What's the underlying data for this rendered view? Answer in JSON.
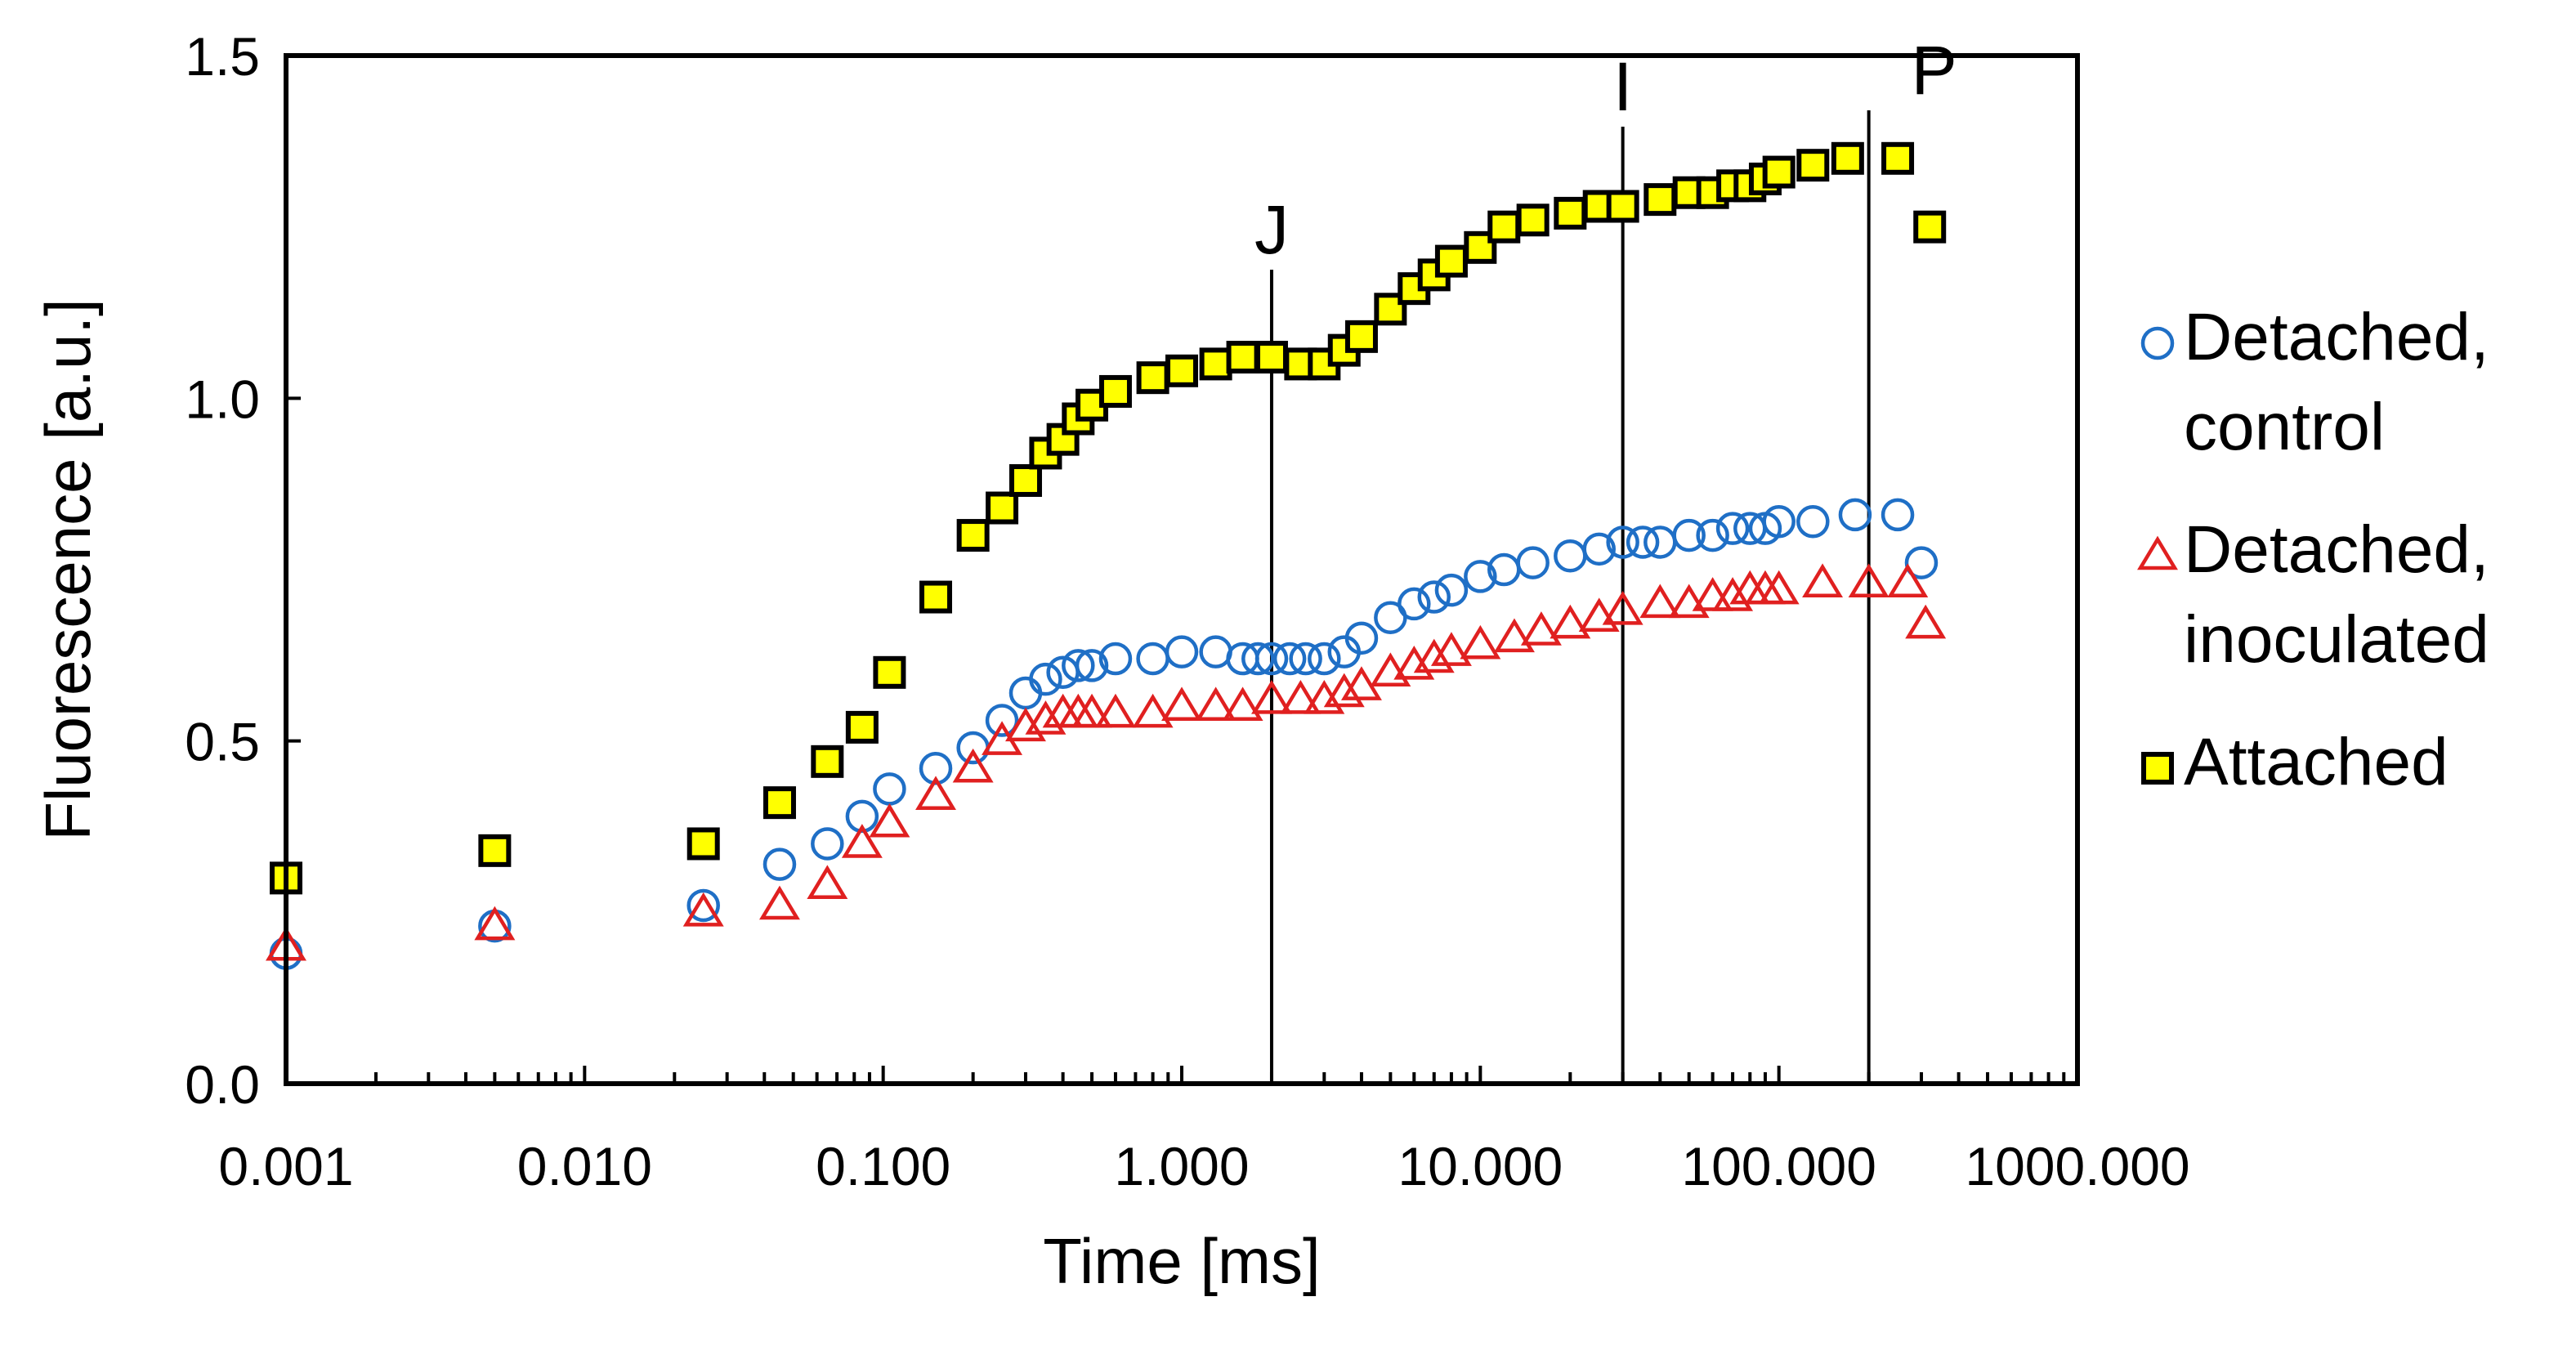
{
  "chart_data": {
    "type": "scatter",
    "x_scale": "log",
    "xlabel": "Time [ms]",
    "ylabel": "Fluorescence [a.u.]",
    "xlim": [
      0.001,
      1000
    ],
    "ylim": [
      0.0,
      1.5
    ],
    "x_tick_labels": [
      "0.001",
      "0.010",
      "0.100",
      "1.000",
      "10.000",
      "100.000",
      "1000.000"
    ],
    "y_tick_labels": [
      "0.0",
      "0.5",
      "1.0",
      "1.5"
    ],
    "x_tick_values": [
      0.001,
      0.01,
      0.1,
      1,
      10,
      100,
      1000
    ],
    "y_tick_values": [
      0.0,
      0.5,
      1.0,
      1.5
    ],
    "grid": false,
    "legend_position": "right",
    "phase_markers": [
      {
        "label": "J",
        "x": 2
      },
      {
        "label": "I",
        "x": 30
      },
      {
        "label": "P",
        "x": 200
      }
    ],
    "series": [
      {
        "name": "Detached, control",
        "legend_lines": [
          "Detached,",
          "control"
        ],
        "marker": "circle",
        "color": "#1f6fc6",
        "points": [
          [
            0.001,
            0.19
          ],
          [
            0.005,
            0.23
          ],
          [
            0.025,
            0.26
          ],
          [
            0.045,
            0.32
          ],
          [
            0.065,
            0.35
          ],
          [
            0.085,
            0.39
          ],
          [
            0.105,
            0.43
          ],
          [
            0.15,
            0.46
          ],
          [
            0.2,
            0.49
          ],
          [
            0.25,
            0.53
          ],
          [
            0.3,
            0.57
          ],
          [
            0.35,
            0.59
          ],
          [
            0.4,
            0.6
          ],
          [
            0.45,
            0.61
          ],
          [
            0.5,
            0.61
          ],
          [
            0.6,
            0.62
          ],
          [
            0.8,
            0.62
          ],
          [
            1.0,
            0.63
          ],
          [
            1.3,
            0.63
          ],
          [
            1.6,
            0.62
          ],
          [
            1.8,
            0.62
          ],
          [
            2.0,
            0.62
          ],
          [
            2.3,
            0.62
          ],
          [
            2.6,
            0.62
          ],
          [
            3.0,
            0.62
          ],
          [
            3.5,
            0.63
          ],
          [
            4.0,
            0.65
          ],
          [
            5.0,
            0.68
          ],
          [
            6.0,
            0.7
          ],
          [
            7.0,
            0.71
          ],
          [
            8.0,
            0.72
          ],
          [
            10.0,
            0.74
          ],
          [
            12.0,
            0.75
          ],
          [
            15.0,
            0.76
          ],
          [
            20.0,
            0.77
          ],
          [
            25.0,
            0.78
          ],
          [
            30.0,
            0.79
          ],
          [
            35.0,
            0.79
          ],
          [
            40.0,
            0.79
          ],
          [
            50.0,
            0.8
          ],
          [
            60.0,
            0.8
          ],
          [
            70.0,
            0.81
          ],
          [
            80.0,
            0.81
          ],
          [
            90.0,
            0.81
          ],
          [
            100.0,
            0.82
          ],
          [
            130.0,
            0.82
          ],
          [
            180.0,
            0.83
          ],
          [
            250.0,
            0.83
          ],
          [
            300.0,
            0.76
          ]
        ]
      },
      {
        "name": "Detached, inoculated",
        "legend_lines": [
          "Detached,",
          "inoculated"
        ],
        "marker": "triangle",
        "color": "#e02020",
        "points": [
          [
            0.001,
            0.2
          ],
          [
            0.005,
            0.23
          ],
          [
            0.025,
            0.25
          ],
          [
            0.045,
            0.26
          ],
          [
            0.065,
            0.29
          ],
          [
            0.085,
            0.35
          ],
          [
            0.105,
            0.38
          ],
          [
            0.15,
            0.42
          ],
          [
            0.2,
            0.46
          ],
          [
            0.25,
            0.5
          ],
          [
            0.3,
            0.52
          ],
          [
            0.35,
            0.53
          ],
          [
            0.4,
            0.54
          ],
          [
            0.45,
            0.54
          ],
          [
            0.5,
            0.54
          ],
          [
            0.6,
            0.54
          ],
          [
            0.8,
            0.54
          ],
          [
            1.0,
            0.55
          ],
          [
            1.3,
            0.55
          ],
          [
            1.6,
            0.55
          ],
          [
            2.0,
            0.56
          ],
          [
            2.5,
            0.56
          ],
          [
            3.0,
            0.56
          ],
          [
            3.5,
            0.57
          ],
          [
            4.0,
            0.58
          ],
          [
            5.0,
            0.6
          ],
          [
            6.0,
            0.61
          ],
          [
            7.0,
            0.62
          ],
          [
            8.0,
            0.63
          ],
          [
            10.0,
            0.64
          ],
          [
            13.0,
            0.65
          ],
          [
            16.0,
            0.66
          ],
          [
            20.0,
            0.67
          ],
          [
            25.0,
            0.68
          ],
          [
            30.0,
            0.69
          ],
          [
            40.0,
            0.7
          ],
          [
            50.0,
            0.7
          ],
          [
            60.0,
            0.71
          ],
          [
            70.0,
            0.71
          ],
          [
            80.0,
            0.72
          ],
          [
            90.0,
            0.72
          ],
          [
            100.0,
            0.72
          ],
          [
            140.0,
            0.73
          ],
          [
            200.0,
            0.73
          ],
          [
            270.0,
            0.73
          ],
          [
            310.0,
            0.67
          ]
        ]
      },
      {
        "name": "Attached",
        "legend_lines": [
          "Attached"
        ],
        "marker": "square",
        "color": "#ffff00",
        "points": [
          [
            0.001,
            0.3
          ],
          [
            0.005,
            0.34
          ],
          [
            0.025,
            0.35
          ],
          [
            0.045,
            0.41
          ],
          [
            0.065,
            0.47
          ],
          [
            0.085,
            0.52
          ],
          [
            0.105,
            0.6
          ],
          [
            0.15,
            0.71
          ],
          [
            0.2,
            0.8
          ],
          [
            0.25,
            0.84
          ],
          [
            0.3,
            0.88
          ],
          [
            0.35,
            0.92
          ],
          [
            0.4,
            0.94
          ],
          [
            0.45,
            0.97
          ],
          [
            0.5,
            0.99
          ],
          [
            0.6,
            1.01
          ],
          [
            0.8,
            1.03
          ],
          [
            1.0,
            1.04
          ],
          [
            1.3,
            1.05
          ],
          [
            1.6,
            1.06
          ],
          [
            2.0,
            1.06
          ],
          [
            2.5,
            1.05
          ],
          [
            3.0,
            1.05
          ],
          [
            3.5,
            1.07
          ],
          [
            4.0,
            1.09
          ],
          [
            5.0,
            1.13
          ],
          [
            6.0,
            1.16
          ],
          [
            7.0,
            1.18
          ],
          [
            8.0,
            1.2
          ],
          [
            10.0,
            1.22
          ],
          [
            12.0,
            1.25
          ],
          [
            15.0,
            1.26
          ],
          [
            20.0,
            1.27
          ],
          [
            25.0,
            1.28
          ],
          [
            30.0,
            1.28
          ],
          [
            40.0,
            1.29
          ],
          [
            50.0,
            1.3
          ],
          [
            60.0,
            1.3
          ],
          [
            70.0,
            1.31
          ],
          [
            80.0,
            1.31
          ],
          [
            90.0,
            1.32
          ],
          [
            100.0,
            1.33
          ],
          [
            130.0,
            1.34
          ],
          [
            170.0,
            1.35
          ],
          [
            250.0,
            1.35
          ],
          [
            320.0,
            1.25
          ]
        ]
      }
    ]
  }
}
